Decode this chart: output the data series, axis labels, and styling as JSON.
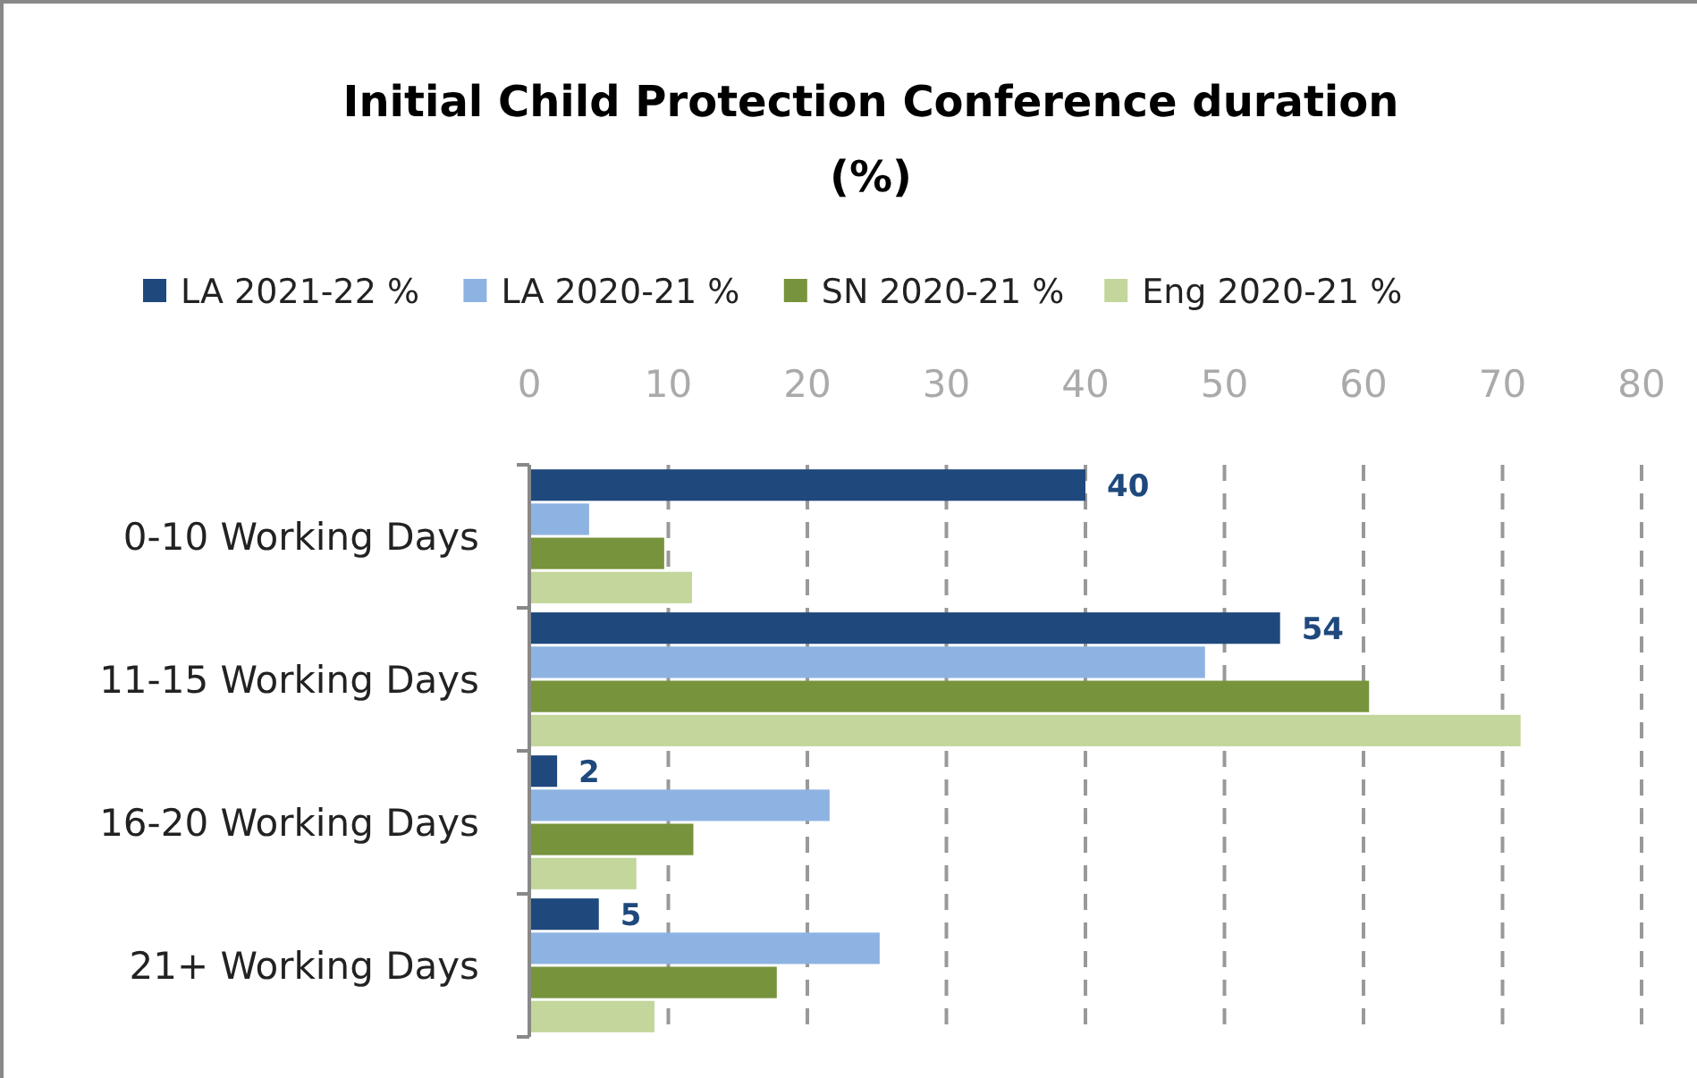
{
  "chart_data": {
    "type": "bar",
    "orientation": "horizontal",
    "title": "Initial Child Protection Conference duration",
    "subtitle": "(%)",
    "categories": [
      "0-10 Working Days",
      "11-15 Working Days",
      "16-20 Working Days",
      "21+ Working Days"
    ],
    "series": [
      {
        "name": "LA 2021-22 %",
        "color": "#1f497d",
        "values": [
          40,
          54,
          2,
          5
        ],
        "value_labels": [
          "40",
          "54",
          "2",
          "5"
        ]
      },
      {
        "name": "LA 2020-21 %",
        "color": "#8db3e2",
        "values": [
          4.3,
          48.6,
          21.6,
          25.2
        ]
      },
      {
        "name": "SN 2020-21 %",
        "color": "#77933c",
        "values": [
          9.7,
          60.4,
          11.8,
          17.8
        ]
      },
      {
        "name": "Eng 2020-21 %",
        "color": "#c3d69b",
        "values": [
          11.7,
          71.3,
          7.7,
          9.0
        ]
      }
    ],
    "xlim": [
      0,
      80
    ],
    "xticks": [
      0,
      10,
      20,
      30,
      40,
      50,
      60,
      70,
      80
    ],
    "grid": "x",
    "legend": "top"
  }
}
